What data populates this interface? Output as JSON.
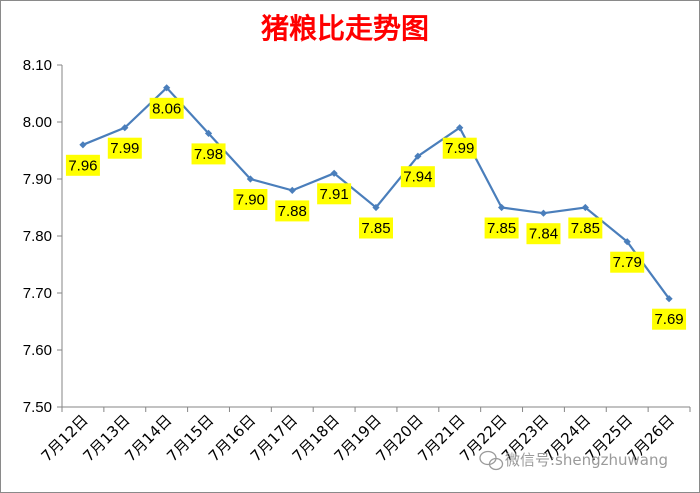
{
  "chart_data": {
    "type": "line",
    "title": "猪粮比走势图",
    "categories": [
      "7月12日",
      "7月13日",
      "7月14日",
      "7月15日",
      "7月16日",
      "7月17日",
      "7月18日",
      "7月19日",
      "7月20日",
      "7月21日",
      "7月22日",
      "7月23日",
      "7月24日",
      "7月25日",
      "7月26日"
    ],
    "values": [
      7.96,
      7.99,
      8.06,
      7.98,
      7.9,
      7.88,
      7.91,
      7.85,
      7.94,
      7.99,
      7.85,
      7.84,
      7.85,
      7.79,
      7.69
    ],
    "ylim": [
      7.5,
      8.1
    ],
    "yticks": [
      "7.50",
      "7.60",
      "7.70",
      "7.80",
      "7.90",
      "8.00",
      "8.10"
    ],
    "grid": false,
    "legend": "none",
    "line_color": "#4a7ebb",
    "label_bg_color": "#ffff00"
  },
  "watermark": "微信号:shengzhuwang"
}
